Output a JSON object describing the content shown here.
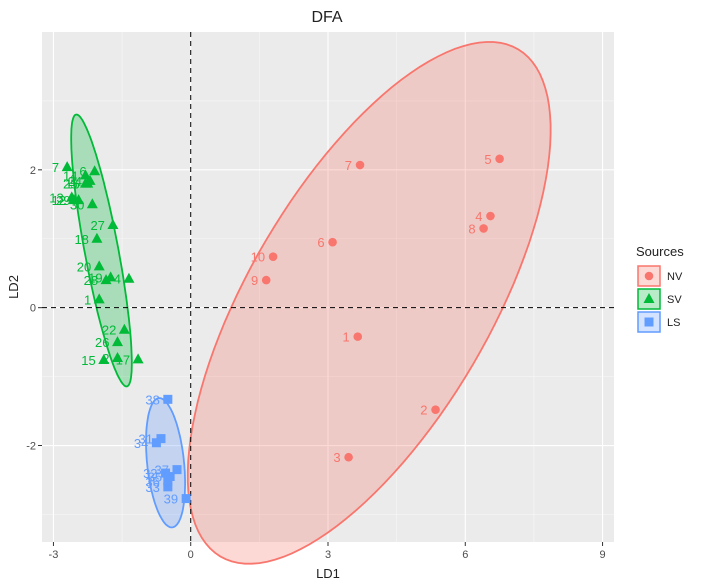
{
  "chart_data": {
    "type": "scatter",
    "title": "DFA",
    "xlabel": "LD1",
    "ylabel": "LD2",
    "xlim": [
      -3.25,
      9.25
    ],
    "ylim": [
      -3.4,
      4.0
    ],
    "xticks": [
      -3,
      0,
      3,
      6,
      9
    ],
    "yticks": [
      -2,
      0,
      2
    ],
    "grid": true,
    "reference_lines": {
      "x": 0,
      "y": 0,
      "style": "dashed"
    },
    "legend": {
      "title": "Sources",
      "position": "right"
    },
    "series": [
      {
        "name": "NV",
        "marker": "circle",
        "color": "#F8766D",
        "ellipse": {
          "cx": 3.9,
          "cy": 0.07,
          "rx": 5.0,
          "ry": 2.25,
          "angle_deg": 43
        },
        "points": [
          {
            "label": "1",
            "x": 3.65,
            "y": -0.42
          },
          {
            "label": "2",
            "x": 5.35,
            "y": -1.48
          },
          {
            "label": "3",
            "x": 3.45,
            "y": -2.17
          },
          {
            "label": "4",
            "x": 6.55,
            "y": 1.33
          },
          {
            "label": "5",
            "x": 6.75,
            "y": 2.16
          },
          {
            "label": "6",
            "x": 3.1,
            "y": 0.95
          },
          {
            "label": "7",
            "x": 3.7,
            "y": 2.07
          },
          {
            "label": "8",
            "x": 6.4,
            "y": 1.15
          },
          {
            "label": "9",
            "x": 1.65,
            "y": 0.4
          },
          {
            "label": "10",
            "x": 1.8,
            "y": 0.74
          }
        ]
      },
      {
        "name": "SV",
        "marker": "triangle",
        "color": "#00BA38",
        "ellipse": {
          "cx": -1.95,
          "cy": 0.83,
          "rx": 2.05,
          "ry": 0.36,
          "angle_deg": -74
        },
        "points": [
          {
            "label": "2",
            "x": -1.6,
            "y": -0.73
          },
          {
            "label": "7",
            "x": -2.7,
            "y": 2.04
          },
          {
            "label": "12",
            "x": -2.55,
            "y": 1.56
          },
          {
            "label": "13",
            "x": -2.6,
            "y": 1.6
          },
          {
            "label": "14",
            "x": -2.3,
            "y": 1.92
          },
          {
            "label": "15",
            "x": -1.9,
            "y": -0.76
          },
          {
            "label": "16",
            "x": -2.25,
            "y": 1.8
          },
          {
            "label": "18",
            "x": -2.05,
            "y": 1.0
          },
          {
            "label": "20",
            "x": -2.0,
            "y": 0.6
          },
          {
            "label": "22",
            "x": -1.45,
            "y": -0.32
          },
          {
            "label": "24",
            "x": -2.2,
            "y": 1.84
          },
          {
            "label": "25",
            "x": -2.3,
            "y": 1.8
          },
          {
            "label": "26",
            "x": -1.6,
            "y": -0.5
          },
          {
            "label": "27",
            "x": -1.7,
            "y": 1.2
          },
          {
            "label": "28",
            "x": -1.85,
            "y": 0.4
          },
          {
            "label": "29",
            "x": -2.45,
            "y": 1.56
          },
          {
            "label": "30",
            "x": -2.15,
            "y": 1.5
          },
          {
            "label": "6",
            "x": -2.1,
            "y": 1.98
          },
          {
            "label": "19",
            "x": -1.75,
            "y": 0.44
          },
          {
            "label": "4",
            "x": -1.35,
            "y": 0.42
          },
          {
            "label": "1",
            "x": -2.0,
            "y": 0.12
          },
          {
            "label": "17",
            "x": -1.15,
            "y": -0.75
          }
        ]
      },
      {
        "name": "LS",
        "marker": "square",
        "color": "#619CFF",
        "ellipse": {
          "cx": -0.55,
          "cy": -2.25,
          "rx": 0.95,
          "ry": 0.4,
          "angle_deg": -80
        },
        "points": [
          {
            "label": "31",
            "x": -0.65,
            "y": -1.9
          },
          {
            "label": "32",
            "x": -0.55,
            "y": -2.4
          },
          {
            "label": "33",
            "x": -0.5,
            "y": -2.6
          },
          {
            "label": "34",
            "x": -0.75,
            "y": -1.96
          },
          {
            "label": "35",
            "x": -0.45,
            "y": -2.45
          },
          {
            "label": "36",
            "x": -0.5,
            "y": -2.52
          },
          {
            "label": "37",
            "x": -0.3,
            "y": -2.35
          },
          {
            "label": "38",
            "x": -0.5,
            "y": -1.33
          },
          {
            "label": "39",
            "x": -0.1,
            "y": -2.77
          }
        ]
      }
    ]
  }
}
